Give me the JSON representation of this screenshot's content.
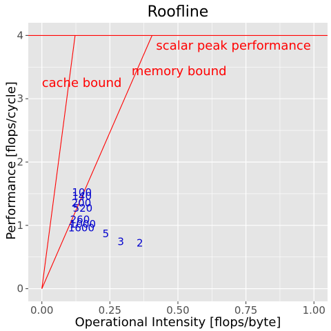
{
  "chart_data": {
    "type": "line",
    "title": "Roofline",
    "xlabel": "Operational Intensity [flops/byte]",
    "ylabel": "Performance [flops/cycle]",
    "xlim": [
      -0.05,
      1.05
    ],
    "ylim": [
      -0.2,
      4.2
    ],
    "x_ticks": [
      0,
      0.25,
      0.5,
      0.75,
      1.0
    ],
    "x_tick_labels": [
      "0.00",
      "0.25",
      "0.50",
      "0.75",
      "1.00"
    ],
    "y_ticks": [
      0,
      1,
      2,
      3,
      4
    ],
    "y_tick_labels": [
      "0",
      "1",
      "2",
      "3",
      "4"
    ],
    "grid": true,
    "background": "#e5e5e5",
    "grid_color": "#ffffff",
    "roof_color": "#ff0000",
    "point_color": "#0000cd",
    "lines": [
      {
        "label": "scalar peak performance",
        "points": [
          [
            -0.05,
            4
          ],
          [
            1.05,
            4
          ]
        ]
      },
      {
        "label": "memory bound",
        "points": [
          [
            0,
            0
          ],
          [
            0.405,
            4
          ]
        ]
      },
      {
        "label": "cache bound",
        "points": [
          [
            0,
            0
          ],
          [
            0.122,
            4
          ]
        ]
      }
    ],
    "roof_labels": [
      {
        "text": "scalar peak performance",
        "x": 0.42,
        "y": 3.84
      },
      {
        "text": "memory bound",
        "x": 0.33,
        "y": 3.44
      },
      {
        "text": "cache bound",
        "x": 0.0,
        "y": 3.25
      }
    ],
    "points": [
      {
        "label": "2",
        "x": 0.36,
        "y": 0.72
      },
      {
        "label": "3",
        "x": 0.29,
        "y": 0.74
      },
      {
        "label": "5",
        "x": 0.235,
        "y": 0.87
      },
      {
        "label": "1000",
        "x": 0.15,
        "y": 1.02
      },
      {
        "label": "1600",
        "x": 0.145,
        "y": 0.96
      },
      {
        "label": "260",
        "x": 0.14,
        "y": 1.09
      },
      {
        "label": "520",
        "x": 0.15,
        "y": 1.27
      },
      {
        "label": "200",
        "x": 0.145,
        "y": 1.35
      },
      {
        "label": "140",
        "x": 0.147,
        "y": 1.46
      },
      {
        "label": "100",
        "x": 0.147,
        "y": 1.52
      }
    ]
  }
}
